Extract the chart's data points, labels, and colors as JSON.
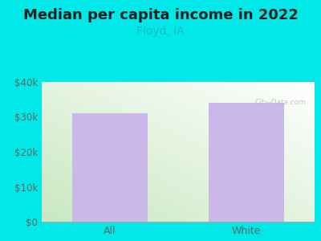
{
  "title": "Median per capita income in 2022",
  "subtitle": "Floyd, IA",
  "categories": [
    "All",
    "White"
  ],
  "values": [
    31000,
    34000
  ],
  "bar_color": "#c9b8e8",
  "title_fontsize": 13,
  "subtitle_fontsize": 10,
  "subtitle_color": "#22bbbb",
  "tick_label_color": "#666666",
  "outer_bg_color": "#00e8e8",
  "plot_bg_color_topleft": "#e8f5e8",
  "plot_bg_color_botleft": "#c8e8c0",
  "plot_bg_color_right": "#f5fff5",
  "ylim": [
    0,
    40000
  ],
  "yticks": [
    0,
    10000,
    20000,
    30000,
    40000
  ],
  "ytick_labels": [
    "$0",
    "$10k",
    "$20k",
    "$30k",
    "$40k"
  ],
  "bar_width": 0.55,
  "xlim": [
    -0.5,
    1.5
  ]
}
